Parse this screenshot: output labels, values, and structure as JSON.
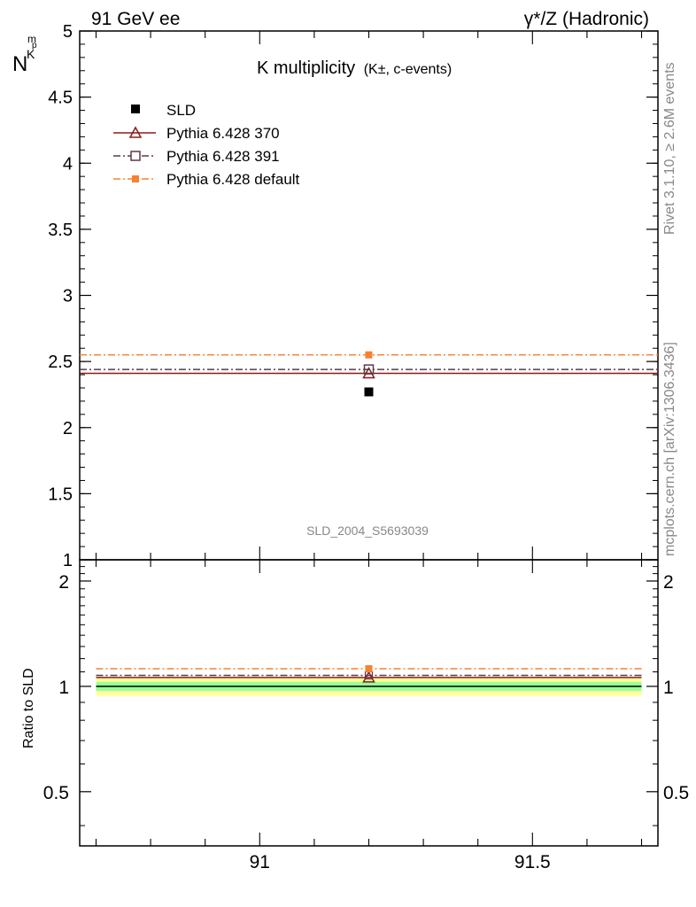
{
  "header": {
    "left": "91 GeV ee",
    "right": "γ*/Z (Hadronic)"
  },
  "side_text": {
    "rivet": "Rivet 3.1.10, ≥ 2.6M events",
    "mcplots": "mcplots.cern.ch [arXiv:1306.3436]"
  },
  "watermark": "SLD_2004_S5693039",
  "colors": {
    "data": "#000000",
    "p370": "#8b1a1a",
    "p391": "#5a3a4a",
    "pdef": "#f58231",
    "band_yellow": "#ffff99",
    "band_green": "#99ff99"
  },
  "chart_data": [
    {
      "type": "scatter",
      "title": "K multiplicity",
      "title_sub": "(K±, c-events)",
      "ylabel": "N",
      "ylabel_sub": "K",
      "ylabel_sup": "p",
      "ylabel_sub2": "m",
      "xlim": [
        90.67,
        91.73
      ],
      "ylim": [
        1.0,
        5.0
      ],
      "yticks": [
        1,
        1.5,
        2,
        2.5,
        3,
        3.5,
        4,
        4.5,
        5
      ],
      "ytick_labels": [
        "1",
        "1.5",
        "2",
        "2.5",
        "3",
        "3.5",
        "4",
        "4.5",
        "5"
      ],
      "legend": {
        "placement": "top-left",
        "entries": [
          "SLD",
          "Pythia 6.428 370",
          "Pythia 6.428 391",
          "Pythia 6.428 default"
        ]
      },
      "series": [
        {
          "name": "SLD",
          "style": "square",
          "x": [
            91.2
          ],
          "y": [
            2.27
          ],
          "xrange": null
        },
        {
          "name": "Pythia 6.428 370",
          "style": "triangle-solid",
          "x": [
            91.2
          ],
          "y": [
            2.41
          ],
          "xrange": [
            90.67,
            91.73
          ]
        },
        {
          "name": "Pythia 6.428 391",
          "style": "opensquare-dashdot",
          "x": [
            91.2
          ],
          "y": [
            2.44
          ],
          "xrange": [
            90.67,
            91.73
          ]
        },
        {
          "name": "Pythia 6.428 default",
          "style": "filledsquare-dashdot",
          "x": [
            91.2
          ],
          "y": [
            2.55
          ],
          "xrange": [
            90.67,
            91.73
          ]
        }
      ]
    },
    {
      "type": "scatter",
      "ylabel": "Ratio to SLD",
      "xlim": [
        90.67,
        91.73
      ],
      "ylim": [
        0.35,
        2.3
      ],
      "yscale": "log",
      "yticks": [
        0.5,
        1,
        2
      ],
      "ytick_labels": [
        "0.5",
        "1",
        "2"
      ],
      "xticks": [
        91,
        91.5
      ],
      "xtick_labels": [
        "91",
        "91.5"
      ],
      "bands": [
        {
          "name": "2sigma",
          "lo": 0.94,
          "hi": 1.06
        },
        {
          "name": "1sigma",
          "lo": 0.97,
          "hi": 1.03
        }
      ],
      "series": [
        {
          "name": "Pythia 6.428 370",
          "x": [
            91.2
          ],
          "y": [
            1.06
          ]
        },
        {
          "name": "Pythia 6.428 391",
          "x": [
            91.2
          ],
          "y": [
            1.075
          ]
        },
        {
          "name": "Pythia 6.428 default",
          "x": [
            91.2
          ],
          "y": [
            1.123
          ]
        }
      ]
    }
  ]
}
